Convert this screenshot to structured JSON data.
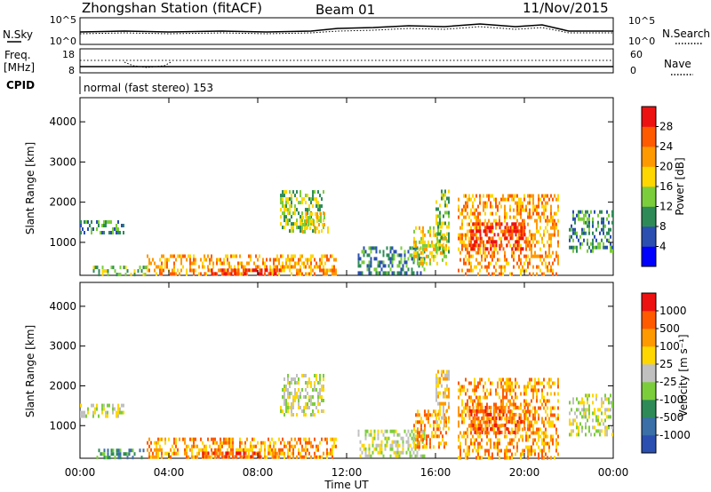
{
  "header": {
    "station": "Zhongshan Station (fitACF)",
    "beam": "Beam 01",
    "date": "11/Nov/2015"
  },
  "noise_panel": {
    "left_label": "N.Sky",
    "right_label": "N.Search",
    "ticks_left": [
      "10^5",
      "10^0"
    ],
    "ticks_right": [
      "10^5",
      "10^0"
    ]
  },
  "freq_panel": {
    "left_label_top": "Freq.",
    "left_label_unit": "[MHz]",
    "right_label": "Nave",
    "ticks_left": [
      "18",
      "8"
    ],
    "ticks_right": [
      "60",
      "0"
    ]
  },
  "cpid": {
    "label": "CPID",
    "value": "normal (fast stereo) 153"
  },
  "chart_data": [
    {
      "type": "heatmap",
      "name": "power",
      "ylabel": "Slant Range [km]",
      "yticks": [
        "4000",
        "3000",
        "2000",
        "1000"
      ],
      "ylim": [
        180,
        4600
      ],
      "xlim": [
        0,
        24
      ],
      "colorbar_label": "Power [dB]",
      "colorbar_ticks": [
        "28",
        "24",
        "20",
        "16",
        "12",
        "8",
        "4"
      ],
      "colors": [
        "#0000ff",
        "#2a4fb0",
        "#2e8b57",
        "#7ccd3c",
        "#ffd700",
        "#ff9900",
        "#ff5a00",
        "#ee1111"
      ],
      "echo_regions": [
        {
          "x": [
            0.0,
            2.0
          ],
          "y": [
            1250,
            1550
          ],
          "level": 2
        },
        {
          "x": [
            0.5,
            3.0
          ],
          "y": [
            200,
            420
          ],
          "level": 3
        },
        {
          "x": [
            3.0,
            11.5
          ],
          "y": [
            200,
            700
          ],
          "level": 5
        },
        {
          "x": [
            5.5,
            9.0
          ],
          "y": [
            200,
            350
          ],
          "level": 7
        },
        {
          "x": [
            9.0,
            11.0
          ],
          "y": [
            1300,
            2300
          ],
          "level": 3
        },
        {
          "x": [
            10.0,
            11.2
          ],
          "y": [
            1250,
            1750
          ],
          "level": 4
        },
        {
          "x": [
            12.5,
            15.5
          ],
          "y": [
            200,
            900
          ],
          "level": 2
        },
        {
          "x": [
            15.0,
            16.5
          ],
          "y": [
            500,
            1400
          ],
          "level": 4
        },
        {
          "x": [
            16.0,
            16.6
          ],
          "y": [
            800,
            2400
          ],
          "level": 3
        },
        {
          "x": [
            17.0,
            21.5
          ],
          "y": [
            200,
            2200
          ],
          "level": 5
        },
        {
          "x": [
            17.5,
            20.0
          ],
          "y": [
            800,
            1500
          ],
          "level": 7
        },
        {
          "x": [
            22.0,
            24.0
          ],
          "y": [
            800,
            1800
          ],
          "level": 2
        }
      ]
    },
    {
      "type": "heatmap",
      "name": "velocity",
      "xlabel": "Time UT",
      "xticks": [
        "00:00",
        "04:00",
        "08:00",
        "12:00",
        "16:00",
        "20:00",
        "00:00"
      ],
      "ylabel": "Slant Range [km]",
      "yticks": [
        "4000",
        "3000",
        "2000",
        "1000"
      ],
      "ylim": [
        180,
        4600
      ],
      "xlim": [
        0,
        24
      ],
      "colorbar_label": "Velocity [m s⁻¹]",
      "colorbar_ticks": [
        "1000",
        "500",
        "100",
        "25",
        "-25",
        "-100",
        "-500",
        "-1000"
      ],
      "colors": [
        "#2a4fb0",
        "#3a6fa8",
        "#2e8b57",
        "#7ccd3c",
        "#c0c0c0",
        "#ffd700",
        "#ff9900",
        "#ff5a00",
        "#ee1111"
      ],
      "echo_regions": [
        {
          "x": [
            0.0,
            2.0
          ],
          "y": [
            1250,
            1550
          ],
          "level": 4
        },
        {
          "x": [
            0.5,
            3.0
          ],
          "y": [
            200,
            420
          ],
          "level": 2
        },
        {
          "x": [
            3.0,
            11.5
          ],
          "y": [
            200,
            700
          ],
          "level": 6
        },
        {
          "x": [
            5.5,
            9.0
          ],
          "y": [
            200,
            350
          ],
          "level": 7
        },
        {
          "x": [
            9.0,
            11.0
          ],
          "y": [
            1300,
            2300
          ],
          "level": 4
        },
        {
          "x": [
            12.5,
            15.5
          ],
          "y": [
            200,
            900
          ],
          "level": 4
        },
        {
          "x": [
            15.0,
            16.5
          ],
          "y": [
            500,
            1400
          ],
          "level": 6
        },
        {
          "x": [
            16.0,
            16.6
          ],
          "y": [
            800,
            2400
          ],
          "level": 5
        },
        {
          "x": [
            17.0,
            21.5
          ],
          "y": [
            200,
            2200
          ],
          "level": 6
        },
        {
          "x": [
            17.5,
            20.0
          ],
          "y": [
            800,
            1500
          ],
          "level": 7
        },
        {
          "x": [
            22.0,
            24.0
          ],
          "y": [
            800,
            1800
          ],
          "level": 4
        }
      ]
    }
  ]
}
